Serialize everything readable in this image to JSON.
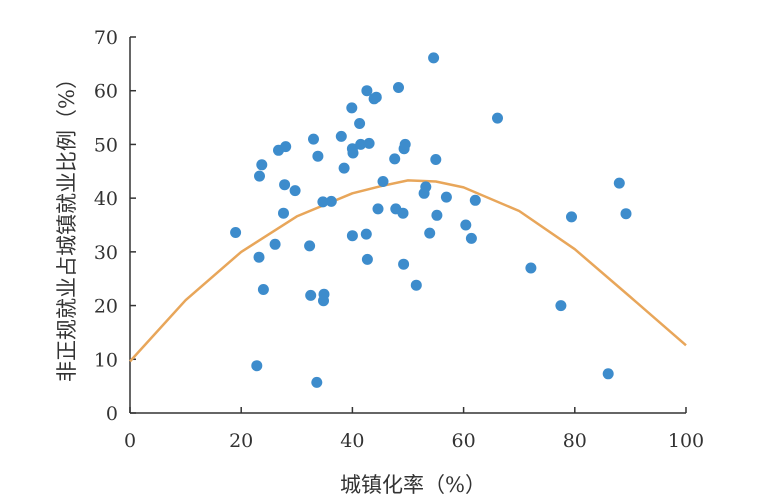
{
  "chart_data": {
    "type": "scatter",
    "xlabel": "城镇化率（%）",
    "ylabel": "非正规就业占城镇就业比例（%）",
    "xlim": [
      0,
      100
    ],
    "ylim": [
      0,
      70
    ],
    "xticks": [
      "0",
      "20",
      "40",
      "60",
      "80",
      "100"
    ],
    "yticks": [
      "0",
      "10",
      "20",
      "30",
      "40",
      "50",
      "60",
      "70"
    ],
    "grid": false,
    "legend": "none",
    "colors": {
      "points": "#3d8ccc",
      "curve": "#e8a65a",
      "axis": "#333333"
    },
    "series": [
      {
        "type": "scatter",
        "points": [
          [
            19.0,
            33.6
          ],
          [
            22.8,
            8.8
          ],
          [
            23.2,
            29.0
          ],
          [
            23.3,
            44.1
          ],
          [
            23.7,
            46.2
          ],
          [
            24.0,
            23.0
          ],
          [
            26.1,
            31.4
          ],
          [
            26.7,
            48.9
          ],
          [
            27.6,
            37.2
          ],
          [
            27.8,
            42.5
          ],
          [
            28.0,
            49.6
          ],
          [
            29.7,
            41.4
          ],
          [
            32.3,
            31.1
          ],
          [
            32.5,
            21.9
          ],
          [
            33.0,
            51.0
          ],
          [
            33.6,
            5.7
          ],
          [
            33.8,
            47.8
          ],
          [
            34.7,
            39.3
          ],
          [
            34.8,
            20.9
          ],
          [
            34.9,
            22.1
          ],
          [
            36.2,
            39.4
          ],
          [
            38.0,
            51.5
          ],
          [
            38.5,
            45.6
          ],
          [
            39.9,
            56.8
          ],
          [
            40.0,
            33.0
          ],
          [
            40.0,
            49.2
          ],
          [
            40.1,
            48.4
          ],
          [
            41.3,
            53.9
          ],
          [
            41.5,
            50.0
          ],
          [
            42.5,
            33.3
          ],
          [
            42.6,
            60.0
          ],
          [
            42.7,
            28.6
          ],
          [
            43.0,
            50.2
          ],
          [
            43.9,
            58.5
          ],
          [
            44.3,
            58.8
          ],
          [
            44.6,
            38.0
          ],
          [
            45.5,
            43.1
          ],
          [
            47.6,
            47.3
          ],
          [
            47.8,
            38.0
          ],
          [
            48.3,
            60.6
          ],
          [
            49.1,
            37.2
          ],
          [
            49.2,
            27.7
          ],
          [
            49.3,
            49.2
          ],
          [
            49.5,
            50.0
          ],
          [
            51.5,
            23.8
          ],
          [
            52.9,
            40.9
          ],
          [
            53.2,
            42.1
          ],
          [
            53.9,
            33.5
          ],
          [
            54.6,
            66.1
          ],
          [
            55.0,
            47.2
          ],
          [
            55.2,
            36.8
          ],
          [
            56.9,
            40.2
          ],
          [
            60.4,
            35.0
          ],
          [
            61.4,
            32.5
          ],
          [
            62.1,
            39.6
          ],
          [
            66.1,
            54.9
          ],
          [
            72.1,
            27.0
          ],
          [
            77.5,
            20.0
          ],
          [
            79.4,
            36.5
          ],
          [
            86.0,
            7.3
          ],
          [
            88.0,
            42.8
          ],
          [
            89.2,
            37.1
          ]
        ]
      },
      {
        "type": "line",
        "x": [
          0,
          10,
          20,
          30,
          40,
          45,
          50,
          55,
          60,
          70,
          80,
          90,
          100
        ],
        "y": [
          9.6,
          21.0,
          30.0,
          36.6,
          40.9,
          42.2,
          43.3,
          43.1,
          42.0,
          37.6,
          30.5,
          21.6,
          12.6
        ]
      }
    ]
  }
}
